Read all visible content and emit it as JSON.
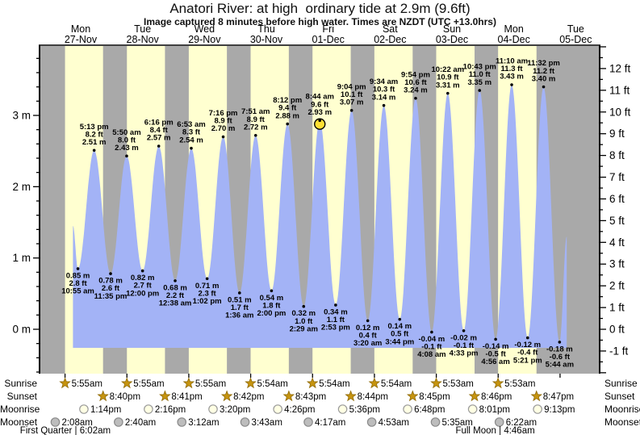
{
  "title": "Anatori River: at high  ordinary tide at 2.9m (9.6ft)",
  "subtitle": "Image captured 8 minutes before high water. Times are NZDT (UTC +13.0hrs)",
  "side_labels": {
    "sunrise": "Sunrise",
    "sunset": "Sunset",
    "moonrise": "Moonrise",
    "moonset": "Moonset"
  },
  "colors": {
    "night_band": "#a9a9a9",
    "day_band": "#ffffd0",
    "tide_fill": "#a3b3f6",
    "day_label": "#ee3333",
    "sun_icon": "#c6940f",
    "sun_icon_edge": "#8f6a06",
    "moonrise_icon": "#ffffe4",
    "moonrise_icon_edge": "#9a9a9a",
    "moonset_icon": "#bdbdbd",
    "moonset_icon_edge": "#8a8a8a",
    "current_marker": "#ffe033",
    "axis": "#000000"
  },
  "chart_data": {
    "type": "area",
    "title": "Anatori River tide heights",
    "yaxis_left": {
      "unit": "m",
      "ticks": [
        0,
        1,
        2,
        3
      ]
    },
    "yaxis_right": {
      "unit": "ft",
      "ticks": [
        -1,
        0,
        1,
        2,
        3,
        4,
        5,
        6,
        7,
        8,
        9,
        10,
        11,
        12
      ]
    },
    "days": [
      {
        "name": "Mon",
        "date": "27-Nov",
        "sunrise": "5:55am",
        "sunrise_h": 5.917,
        "sunset": "8:40pm",
        "sunset_h": 20.667,
        "moonrise": "1:14pm",
        "moonrise_h": 13.233,
        "moonset": "2:08am",
        "moonset_h": 2.133
      },
      {
        "name": "Tue",
        "date": "28-Nov",
        "sunrise": "5:55am",
        "sunrise_h": 5.917,
        "sunset": "8:41pm",
        "sunset_h": 20.683,
        "moonrise": "2:16pm",
        "moonrise_h": 14.267,
        "moonset": "2:40am",
        "moonset_h": 2.667
      },
      {
        "name": "Wed",
        "date": "29-Nov",
        "sunrise": "5:55am",
        "sunrise_h": 5.917,
        "sunset": "8:42pm",
        "sunset_h": 20.7,
        "moonrise": "3:20pm",
        "moonrise_h": 15.333,
        "moonset": "3:12am",
        "moonset_h": 3.2
      },
      {
        "name": "Thu",
        "date": "30-Nov",
        "sunrise": "5:54am",
        "sunrise_h": 5.9,
        "sunset": "8:43pm",
        "sunset_h": 20.717,
        "moonrise": "4:26pm",
        "moonrise_h": 16.433,
        "moonset": "3:43am",
        "moonset_h": 3.717
      },
      {
        "name": "Fri",
        "date": "01-Dec",
        "sunrise": "5:54am",
        "sunrise_h": 5.9,
        "sunset": "8:44pm",
        "sunset_h": 20.733,
        "moonrise": "5:36pm",
        "moonrise_h": 17.6,
        "moonset": "4:17am",
        "moonset_h": 4.283
      },
      {
        "name": "Sat",
        "date": "02-Dec",
        "sunrise": "5:54am",
        "sunrise_h": 5.9,
        "sunset": "8:45pm",
        "sunset_h": 20.75,
        "moonrise": "6:48pm",
        "moonrise_h": 18.8,
        "moonset": "4:53am",
        "moonset_h": 4.883
      },
      {
        "name": "Sun",
        "date": "03-Dec",
        "sunrise": "5:53am",
        "sunrise_h": 5.883,
        "sunset": "8:46pm",
        "sunset_h": 20.767,
        "moonrise": "8:01pm",
        "moonrise_h": 20.017,
        "moonset": "5:35am",
        "moonset_h": 5.583
      },
      {
        "name": "Mon",
        "date": "04-Dec",
        "sunrise": "5:53am",
        "sunrise_h": 5.883,
        "sunset": "8:47pm",
        "sunset_h": 20.783,
        "moonrise": "9:13pm",
        "moonrise_h": 21.217,
        "moonset": "6:22am",
        "moonset_h": 6.367
      },
      {
        "name": "Tue",
        "date": "05-Dec"
      }
    ],
    "tides": [
      {
        "day": 0,
        "h": 10.917,
        "type": "low",
        "time": "10:55 am",
        "m": "0.85",
        "ft": "2.8"
      },
      {
        "day": 0,
        "h": 17.217,
        "type": "high",
        "time": "5:13 pm",
        "m": "2.51",
        "ft": "8.2"
      },
      {
        "day": 0,
        "h": 23.583,
        "type": "low",
        "time": "11:35 pm",
        "m": "0.78",
        "ft": "2.6"
      },
      {
        "day": 1,
        "h": 5.833,
        "type": "high",
        "time": "5:50 am",
        "m": "2.43",
        "ft": "8.0"
      },
      {
        "day": 1,
        "h": 12.0,
        "type": "low",
        "time": "12:00 pm",
        "m": "0.82",
        "ft": "2.7"
      },
      {
        "day": 1,
        "h": 18.267,
        "type": "high",
        "time": "6:16 pm",
        "m": "2.57",
        "ft": "8.4"
      },
      {
        "day": 2,
        "h": 0.633,
        "type": "low",
        "time": "12:38 am",
        "m": "0.68",
        "ft": "2.2"
      },
      {
        "day": 2,
        "h": 6.883,
        "type": "high",
        "time": "6:53 am",
        "m": "2.54",
        "ft": "8.3"
      },
      {
        "day": 2,
        "h": 13.033,
        "type": "low",
        "time": "1:02 pm",
        "m": "0.71",
        "ft": "2.3"
      },
      {
        "day": 2,
        "h": 19.267,
        "type": "high",
        "time": "7:16 pm",
        "m": "2.70",
        "ft": "8.9"
      },
      {
        "day": 3,
        "h": 1.6,
        "type": "low",
        "time": "1:36 am",
        "m": "0.51",
        "ft": "1.7"
      },
      {
        "day": 3,
        "h": 7.85,
        "type": "high",
        "time": "7:51 am",
        "m": "2.72",
        "ft": "8.9"
      },
      {
        "day": 3,
        "h": 14.0,
        "type": "low",
        "time": "2:00 pm",
        "m": "0.54",
        "ft": "1.8"
      },
      {
        "day": 3,
        "h": 20.2,
        "type": "high",
        "time": "8:12 pm",
        "m": "2.88",
        "ft": "9.4"
      },
      {
        "day": 4,
        "h": 2.483,
        "type": "low",
        "time": "2:29 am",
        "m": "0.32",
        "ft": "1.0"
      },
      {
        "day": 4,
        "h": 8.733,
        "type": "high",
        "time": "8:44 am",
        "m": "2.93",
        "ft": "9.6"
      },
      {
        "day": 4,
        "h": 14.883,
        "type": "low",
        "time": "2:53 pm",
        "m": "0.34",
        "ft": "1.1"
      },
      {
        "day": 4,
        "h": 21.067,
        "type": "high",
        "time": "9:04 pm",
        "m": "3.07",
        "ft": "10.1"
      },
      {
        "day": 5,
        "h": 3.333,
        "type": "low",
        "time": "3:20 am",
        "m": "0.12",
        "ft": "0.4"
      },
      {
        "day": 5,
        "h": 9.567,
        "type": "high",
        "time": "9:34 am",
        "m": "3.14",
        "ft": "10.3"
      },
      {
        "day": 5,
        "h": 15.733,
        "type": "low",
        "time": "3:44 pm",
        "m": "0.14",
        "ft": "0.5"
      },
      {
        "day": 5,
        "h": 21.9,
        "type": "high",
        "time": "9:54 pm",
        "m": "3.24",
        "ft": "10.6"
      },
      {
        "day": 6,
        "h": 4.133,
        "type": "low",
        "time": "4:08 am",
        "m": "-0.04",
        "ft": "-0.1"
      },
      {
        "day": 6,
        "h": 10.367,
        "type": "high",
        "time": "10:22 am",
        "m": "3.31",
        "ft": "10.9"
      },
      {
        "day": 6,
        "h": 16.55,
        "type": "low",
        "time": "4:33 pm",
        "m": "-0.02",
        "ft": "-0.1"
      },
      {
        "day": 6,
        "h": 22.717,
        "type": "high",
        "time": "10:43 pm",
        "m": "3.35",
        "ft": "11.0"
      },
      {
        "day": 7,
        "h": 4.933,
        "type": "low",
        "time": "4:56 am",
        "m": "-0.14",
        "ft": "-0.5"
      },
      {
        "day": 7,
        "h": 11.167,
        "type": "high",
        "time": "11:10 am",
        "m": "3.43",
        "ft": "11.3"
      },
      {
        "day": 7,
        "h": 17.35,
        "type": "low",
        "time": "5:21 pm",
        "m": "-0.12",
        "ft": "-0.4"
      },
      {
        "day": 7,
        "h": 23.533,
        "type": "high",
        "time": "11:32 pm",
        "m": "3.40",
        "ft": "11.2"
      },
      {
        "day": 8,
        "h": 5.733,
        "type": "low",
        "time": "5:44 am",
        "m": "-0.18",
        "ft": "-0.6"
      }
    ],
    "curve_start": {
      "day": 0,
      "h": 9.0,
      "height": 1.45
    },
    "curve_end": {
      "day": 8,
      "h": 8.5,
      "height": 1.3
    },
    "current_marker": {
      "day": 4,
      "h": 8.733,
      "height": 2.93
    },
    "moon_phases": [
      {
        "label": "First Quarter",
        "time": "6:02am",
        "day": 0,
        "h": 6.033
      },
      {
        "label": "Full Moon",
        "time": "4:46am",
        "day": 7,
        "h": 4.767
      }
    ]
  }
}
